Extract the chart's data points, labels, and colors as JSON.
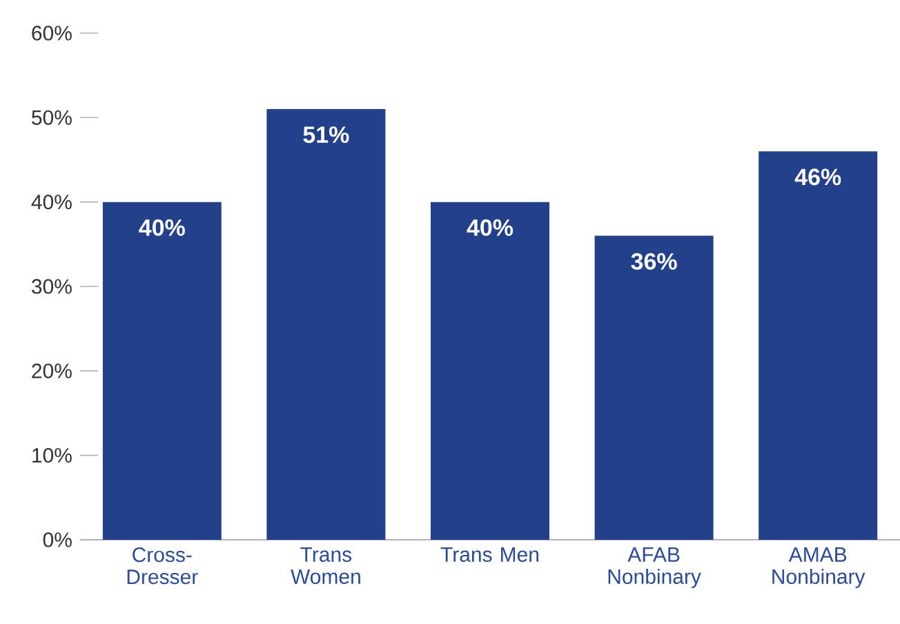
{
  "chart_data": {
    "type": "bar",
    "categories": [
      "Cross-Dresser",
      "Trans Women",
      "Trans Men",
      "AFAB Nonbinary",
      "AMAB Nonbinary"
    ],
    "values": [
      40,
      51,
      40,
      36,
      46
    ],
    "value_labels": [
      "40%",
      "51%",
      "40%",
      "36%",
      "46%"
    ],
    "color": "#22418a",
    "ylim": [
      0,
      60
    ],
    "yticks": [
      {
        "value": 0,
        "label": "0%"
      },
      {
        "value": 10,
        "label": "10%"
      },
      {
        "value": 20,
        "label": "20%"
      },
      {
        "value": 30,
        "label": "30%"
      },
      {
        "value": 40,
        "label": "40%"
      },
      {
        "value": 50,
        "label": "50%"
      },
      {
        "value": 60,
        "label": "60%"
      }
    ]
  }
}
